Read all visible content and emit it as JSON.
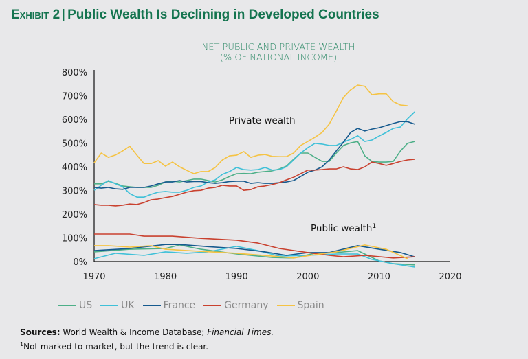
{
  "header": {
    "exhibit_label": "Exhibit 2",
    "title": "Public Wealth Is Declining in Developed Countries"
  },
  "chart_data": {
    "type": "line",
    "title": "NET PUBLIC AND PRIVATE WEALTH",
    "subtitle": "(% OF NATIONAL INCOME)",
    "xlim": [
      1970,
      2020
    ],
    "ylim": [
      0,
      800
    ],
    "x_ticks": [
      "1970",
      "1980",
      "1990",
      "2000",
      "2010",
      "2020"
    ],
    "y_ticks": [
      "0%",
      "100%",
      "200%",
      "300%",
      "400%",
      "500%",
      "600%",
      "700%",
      "800%"
    ],
    "grid": false,
    "legend_position": "bottom",
    "annotations": {
      "private": "Private wealth",
      "public": "Public wealth",
      "public_sup": "1"
    },
    "series": [
      {
        "name": "US",
        "color": "#4daf88",
        "private": {
          "start": 1970,
          "values": [
            328,
            328,
            339,
            330,
            319,
            316,
            313,
            313,
            313,
            322,
            336,
            339,
            336,
            342,
            348,
            348,
            342,
            336,
            345,
            359,
            371,
            372,
            371,
            377,
            380,
            383,
            391,
            403,
            432,
            458,
            458,
            440,
            423,
            423,
            458,
            490,
            501,
            507,
            446,
            423,
            420,
            420,
            423,
            467,
            499,
            507
          ]
        },
        "public": [
          [
            1970,
            41
          ],
          [
            1975,
            52
          ],
          [
            1980,
            55
          ],
          [
            1982,
            70
          ],
          [
            1985,
            52
          ],
          [
            1990,
            32
          ],
          [
            1995,
            17
          ],
          [
            1998,
            15
          ],
          [
            2001,
            35
          ],
          [
            2004,
            38
          ],
          [
            2007,
            46
          ],
          [
            2010,
            3
          ],
          [
            2012,
            -9
          ],
          [
            2015,
            -14
          ]
        ]
      },
      {
        "name": "UK",
        "color": "#3fc0d8",
        "private": {
          "start": 1970,
          "values": [
            301,
            322,
            342,
            328,
            316,
            287,
            272,
            272,
            284,
            293,
            296,
            293,
            293,
            301,
            313,
            319,
            336,
            345,
            368,
            380,
            397,
            388,
            386,
            388,
            397,
            386,
            388,
            400,
            429,
            458,
            481,
            499,
            496,
            490,
            490,
            504,
            516,
            531,
            507,
            513,
            530,
            545,
            562,
            568,
            603,
            632
          ]
        },
        "public": [
          [
            1970,
            12
          ],
          [
            1973,
            35
          ],
          [
            1977,
            26
          ],
          [
            1980,
            41
          ],
          [
            1983,
            35
          ],
          [
            1986,
            41
          ],
          [
            1990,
            64
          ],
          [
            1993,
            46
          ],
          [
            1996,
            23
          ],
          [
            2000,
            26
          ],
          [
            2004,
            32
          ],
          [
            2007,
            32
          ],
          [
            2009,
            9
          ],
          [
            2012,
            -9
          ],
          [
            2015,
            -23
          ]
        ]
      },
      {
        "name": "France",
        "color": "#165a8e",
        "private": {
          "start": 1970,
          "values": [
            313,
            310,
            313,
            307,
            305,
            313,
            313,
            313,
            319,
            328,
            336,
            336,
            342,
            336,
            338,
            338,
            333,
            330,
            333,
            338,
            339,
            339,
            330,
            333,
            330,
            330,
            333,
            336,
            342,
            359,
            377,
            386,
            400,
            429,
            467,
            504,
            545,
            562,
            551,
            559,
            565,
            574,
            583,
            591,
            590,
            580
          ]
        },
        "public": [
          [
            1970,
            46
          ],
          [
            1975,
            55
          ],
          [
            1980,
            72
          ],
          [
            1982,
            72
          ],
          [
            1986,
            63
          ],
          [
            1990,
            55
          ],
          [
            1994,
            41
          ],
          [
            1997,
            26
          ],
          [
            2000,
            38
          ],
          [
            2003,
            38
          ],
          [
            2007,
            67
          ],
          [
            2010,
            52
          ],
          [
            2013,
            38
          ],
          [
            2015,
            20
          ]
        ]
      },
      {
        "name": "Germany",
        "color": "#c9412f",
        "private": {
          "start": 1970,
          "values": [
            241,
            238,
            238,
            235,
            238,
            243,
            241,
            249,
            261,
            264,
            270,
            275,
            284,
            293,
            299,
            301,
            310,
            313,
            322,
            319,
            319,
            301,
            304,
            316,
            319,
            325,
            333,
            345,
            356,
            371,
            386,
            386,
            388,
            391,
            391,
            400,
            391,
            388,
            400,
            420,
            414,
            406,
            414,
            423,
            429,
            432
          ]
        },
        "public": [
          [
            1970,
            116
          ],
          [
            1975,
            116
          ],
          [
            1977,
            107
          ],
          [
            1981,
            107
          ],
          [
            1985,
            98
          ],
          [
            1990,
            90
          ],
          [
            1993,
            78
          ],
          [
            1996,
            55
          ],
          [
            2000,
            38
          ],
          [
            2003,
            26
          ],
          [
            2005,
            20
          ],
          [
            2008,
            26
          ],
          [
            2012,
            15
          ],
          [
            2015,
            20
          ]
        ]
      },
      {
        "name": "Spain",
        "color": "#f5c344",
        "private": {
          "start": 1970,
          "values": [
            417,
            458,
            440,
            450,
            467,
            487,
            449,
            414,
            414,
            426,
            403,
            420,
            400,
            385,
            371,
            380,
            380,
            397,
            429,
            446,
            449,
            464,
            440,
            449,
            452,
            444,
            443,
            443,
            458,
            490,
            507,
            525,
            545,
            580,
            635,
            693,
            725,
            745,
            740,
            704,
            708,
            708,
            675,
            661,
            658
          ]
        },
        "public": [
          [
            1970,
            67
          ],
          [
            1972,
            67
          ],
          [
            1975,
            61
          ],
          [
            1978,
            67
          ],
          [
            1980,
            52
          ],
          [
            1985,
            43
          ],
          [
            1990,
            35
          ],
          [
            1995,
            23
          ],
          [
            1998,
            15
          ],
          [
            2001,
            29
          ],
          [
            2004,
            41
          ],
          [
            2008,
            70
          ],
          [
            2011,
            52
          ],
          [
            2014,
            12
          ]
        ]
      }
    ]
  },
  "footer": {
    "sources_label": "Sources:",
    "sources_text": " World Wealth & Income Database; ",
    "sources_italic": "Financial Times.",
    "footnote_mark": "1",
    "footnote_text": "Not marked to market, but the trend is clear."
  }
}
